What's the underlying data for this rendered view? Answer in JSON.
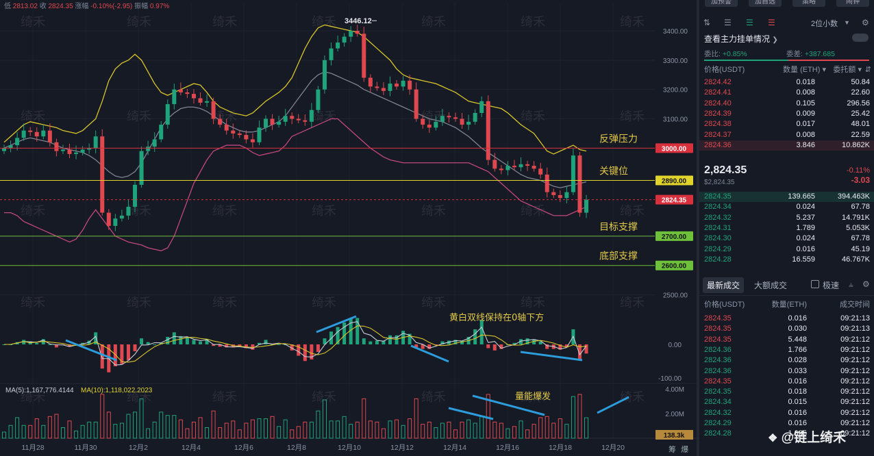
{
  "header": {
    "low_label": "低",
    "low_value": "2813.02",
    "close_label": "收",
    "close_value": "2824.35",
    "change_label": "涨幅",
    "change_value": "-0.10%(-2.95)",
    "amplitude_label": "振幅",
    "amplitude_value": "0.97%"
  },
  "watermark": "绮禾",
  "credit": "@链上绮禾",
  "chart_data": [
    {
      "type": "candlestick",
      "title": "",
      "x_ticks": [
        "11月28",
        "11月30",
        "12月2",
        "12月4",
        "12月6",
        "12月8",
        "12月10",
        "12月12",
        "12月14",
        "12月16",
        "12月18",
        "12月20"
      ],
      "y_ticks": [
        2500,
        3000,
        3100,
        3200,
        3300,
        3400
      ],
      "y_tick_labels": [
        "2500.00",
        "3000.00",
        "3100.00",
        "3200.00",
        "3300.00",
        "3400.00"
      ],
      "ylim": [
        2450,
        3470
      ],
      "high_marker": {
        "label": "3446.12",
        "value": 3446.12
      },
      "price_levels": [
        {
          "value": 3000,
          "label": "3000.00",
          "name": "反弹压力",
          "color": "#d9303e"
        },
        {
          "value": 2890,
          "label": "2890.00",
          "name": "关键位",
          "color": "#e0d32c"
        },
        {
          "value": 2824.35,
          "label": "2824.35",
          "name": "",
          "color": "#d9303e"
        },
        {
          "value": 2700,
          "label": "2700.00",
          "name": "目标支撑",
          "color": "#6ec03a"
        },
        {
          "value": 2600,
          "label": "2600.00",
          "name": "底部支撑",
          "color": "#6ec03a"
        }
      ],
      "series_approx": {
        "close": [
          3000,
          3010,
          3035,
          3060,
          3055,
          3040,
          3060,
          3020,
          2990,
          2995,
          2980,
          2985,
          2995,
          3000,
          3040,
          2780,
          2735,
          2760,
          2770,
          2800,
          2875,
          2990,
          3005,
          3030,
          3080,
          3150,
          3200,
          3190,
          3185,
          3170,
          3155,
          3160,
          3100,
          3080,
          3060,
          3050,
          3045,
          3030,
          3020,
          3070,
          3100,
          3080,
          3090,
          3110,
          3100,
          3095,
          3090,
          3130,
          3200,
          3300,
          3340,
          3360,
          3380,
          3400,
          3390,
          3240,
          3210,
          3205,
          3195,
          3220,
          3210,
          3230,
          3200,
          3100,
          3080,
          3070,
          3090,
          3110,
          3105,
          3100,
          3080,
          3090,
          3120,
          3160,
          2960,
          2930,
          2925,
          2940,
          2935,
          2945,
          2940,
          2930,
          2910,
          2850,
          2840,
          2830,
          2850,
          2975,
          2780,
          2824.35
        ],
        "upper_band": [
          3020,
          3040,
          3060,
          3080,
          3090,
          3085,
          3080,
          3075,
          3070,
          3060,
          3055,
          3050,
          3060,
          3080,
          3100,
          3160,
          3230,
          3270,
          3290,
          3300,
          3320,
          3300,
          3260,
          3220,
          3190,
          3180,
          3190,
          3200,
          3210,
          3220,
          3215,
          3190,
          3160,
          3140,
          3130,
          3120,
          3115,
          3110,
          3120,
          3140,
          3160,
          3175,
          3190,
          3210,
          3240,
          3290,
          3340,
          3380,
          3410,
          3420,
          3415,
          3410,
          3405,
          3400,
          3395,
          3380,
          3360,
          3340,
          3320,
          3300,
          3270,
          3250,
          3240,
          3235,
          3230,
          3225,
          3220,
          3210,
          3200,
          3190,
          3175,
          3160,
          3155,
          3150,
          3145,
          3140,
          3135,
          3120,
          3100,
          3080,
          3065,
          3050,
          3020,
          2990,
          2980,
          2990,
          3000,
          3010,
          2995,
          2990
        ],
        "middle_band": [
          3000,
          3010,
          3020,
          3030,
          3035,
          3030,
          3025,
          3020,
          3010,
          3000,
          2995,
          2990,
          2985,
          2975,
          2960,
          2940,
          2920,
          2905,
          2900,
          2905,
          2920,
          2950,
          2990,
          3030,
          3070,
          3100,
          3120,
          3135,
          3140,
          3140,
          3135,
          3125,
          3110,
          3095,
          3080,
          3070,
          3060,
          3055,
          3055,
          3060,
          3070,
          3080,
          3090,
          3110,
          3140,
          3170,
          3200,
          3230,
          3250,
          3260,
          3255,
          3245,
          3235,
          3225,
          3215,
          3200,
          3190,
          3180,
          3170,
          3160,
          3150,
          3140,
          3130,
          3120,
          3110,
          3100,
          3095,
          3090,
          3080,
          3070,
          3055,
          3040,
          3020,
          3000,
          2985,
          2970,
          2955,
          2940,
          2925,
          2910,
          2900,
          2895,
          2890,
          2880,
          2870,
          2865,
          2870,
          2875,
          2880,
          2885
        ],
        "lower_band": [
          2780,
          2780,
          2770,
          2750,
          2740,
          2730,
          2720,
          2710,
          2700,
          2690,
          2680,
          2690,
          2720,
          2760,
          2790,
          2760,
          2730,
          2700,
          2690,
          2680,
          2675,
          2670,
          2660,
          2655,
          2650,
          2660,
          2700,
          2760,
          2820,
          2880,
          2920,
          2960,
          2990,
          3000,
          3010,
          3010,
          3010,
          3000,
          2985,
          2975,
          2980,
          2985,
          2990,
          3010,
          3040,
          3050,
          3060,
          3070,
          3080,
          3090,
          3100,
          3100,
          3080,
          3060,
          3040,
          3020,
          3000,
          2985,
          2970,
          2960,
          2955,
          2950,
          2950,
          2950,
          2950,
          2950,
          2950,
          2950,
          2950,
          2950,
          2950,
          2950,
          2940,
          2930,
          2920,
          2900,
          2880,
          2860,
          2840,
          2820,
          2810,
          2800,
          2790,
          2780,
          2770,
          2770,
          2770,
          2780,
          2790,
          2800
        ]
      }
    },
    {
      "type": "bar",
      "title": "",
      "y_ticks": [
        0,
        -100
      ],
      "y_tick_labels": [
        "0.00",
        "-100.00"
      ],
      "annotation": "黄白双线保持在0轴下方"
    },
    {
      "type": "bar",
      "title": "",
      "legend": [
        {
          "label": "MA(5):1,167,776.4144",
          "color": "#c9ced8"
        },
        {
          "label": "MA(10):1,118,022.2023",
          "color": "#e0d32c"
        }
      ],
      "y_ticks": [
        4000000,
        2000000
      ],
      "y_tick_labels": [
        "4.00M",
        "2.00M"
      ],
      "current_value_label": "138.3k",
      "annotation": "量能爆发"
    }
  ],
  "bottom_labels": [
    "筹",
    "爆"
  ],
  "orderbook": {
    "top_buttons": [
      "加预警",
      "加自选",
      "策略",
      "闹钟"
    ],
    "precision": "2位小数",
    "section_title": "查看主力挂单情况",
    "ratio_label": "委比:",
    "ratio_value": "+0.85%",
    "diff_label": "委差:",
    "diff_value": "+387.685",
    "headers": [
      "价格(USDT)",
      "数量 (ETH)",
      "委托额"
    ],
    "asks": [
      [
        "2824.42",
        "0.018",
        "50.84"
      ],
      [
        "2824.41",
        "0.008",
        "22.60"
      ],
      [
        "2824.40",
        "0.105",
        "296.56"
      ],
      [
        "2824.39",
        "0.009",
        "25.42"
      ],
      [
        "2824.38",
        "0.017",
        "48.01"
      ],
      [
        "2824.37",
        "0.008",
        "22.59"
      ],
      [
        "2824.36",
        "3.846",
        "10.862K"
      ]
    ],
    "last_price": "2,824.35",
    "last_price_usd": "$2,824.35",
    "last_change_pct": "-0.11%",
    "last_change": "-3.03",
    "bids": [
      [
        "2824.35",
        "139.665",
        "394.463K"
      ],
      [
        "2824.34",
        "0.024",
        "67.78"
      ],
      [
        "2824.32",
        "5.237",
        "14.791K"
      ],
      [
        "2824.31",
        "1.789",
        "5.053K"
      ],
      [
        "2824.30",
        "0.024",
        "67.78"
      ],
      [
        "2824.29",
        "0.016",
        "45.19"
      ],
      [
        "2824.28",
        "16.559",
        "46.767K"
      ]
    ]
  },
  "trades": {
    "tab_latest": "最新成交",
    "tab_large": "大额成交",
    "filter_label": "极速",
    "headers": [
      "价格(USDT)",
      "数量(ETH)",
      "成交时间"
    ],
    "rows": [
      {
        "p": "2824.35",
        "q": "0.016",
        "t": "09:21:13",
        "side": "sell"
      },
      {
        "p": "2824.35",
        "q": "0.030",
        "t": "09:21:13",
        "side": "sell"
      },
      {
        "p": "2824.35",
        "q": "5.448",
        "t": "09:21:12",
        "side": "sell"
      },
      {
        "p": "2824.36",
        "q": "1.766",
        "t": "09:21:12",
        "side": "buy"
      },
      {
        "p": "2824.36",
        "q": "0.028",
        "t": "09:21:12",
        "side": "buy"
      },
      {
        "p": "2824.36",
        "q": "0.033",
        "t": "09:21:12",
        "side": "buy"
      },
      {
        "p": "2824.35",
        "q": "0.016",
        "t": "09:21:12",
        "side": "sell"
      },
      {
        "p": "2824.35",
        "q": "0.018",
        "t": "09:21:12",
        "side": "buy"
      },
      {
        "p": "2824.34",
        "q": "0.015",
        "t": "09:21:12",
        "side": "buy"
      },
      {
        "p": "2824.32",
        "q": "0.016",
        "t": "09:21:12",
        "side": "buy"
      },
      {
        "p": "2824.29",
        "q": "0.016",
        "t": "09:21:12",
        "side": "buy"
      },
      {
        "p": "2824.28",
        "q": "1.025",
        "t": "09:21:12",
        "side": "buy"
      }
    ]
  }
}
